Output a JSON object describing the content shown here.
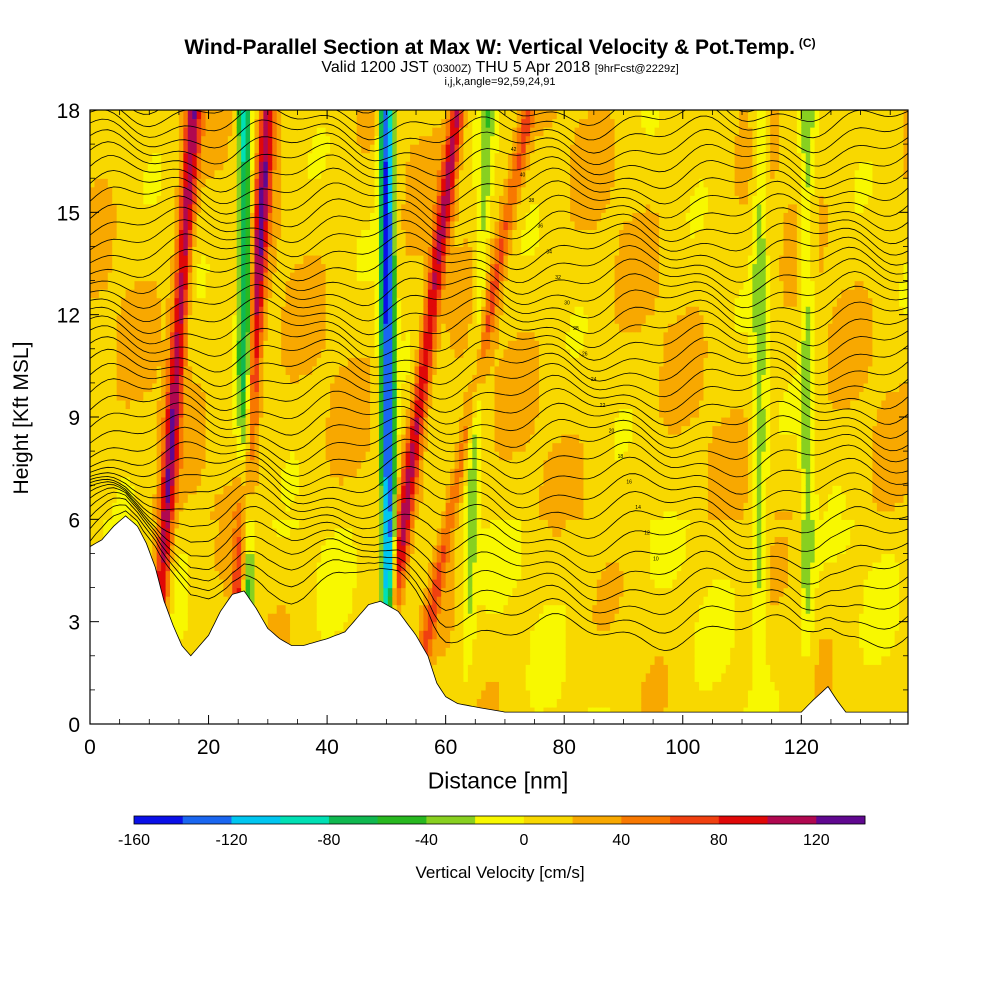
{
  "header": {
    "title": "Wind-Parallel Section at Max W: Vertical Velocity & Pot.Temp.",
    "copyright_mark": "(C)",
    "valid_text": "Valid 1200 JST",
    "utc_text": "(0300Z)",
    "date_text": "THU 5 Apr 2018",
    "forecast_text": "[9hrFcst@2229z]",
    "indices_text": "i,j,k,angle=92,59,24,91"
  },
  "chart_data": {
    "type": "heatmap",
    "title": "Wind-Parallel Section at Max W: Vertical Velocity & Pot.Temp.",
    "xlabel": "Distance [nm]",
    "ylabel": "Height [Kft MSL]",
    "xlim": [
      0,
      138
    ],
    "ylim": [
      0,
      18
    ],
    "x_ticks": [
      0,
      20,
      40,
      60,
      80,
      100,
      120
    ],
    "y_ticks": [
      0,
      3,
      6,
      9,
      12,
      15,
      18
    ],
    "colorbar": {
      "label": "Vertical Velocity [cm/s]",
      "range": [
        -160,
        140
      ],
      "tick_values": [
        -160,
        -120,
        -80,
        -40,
        0,
        40,
        80,
        120
      ],
      "tick_labels": [
        "-160",
        "-120",
        "-80",
        "-40",
        "0",
        "40",
        "80",
        "120"
      ],
      "colors": [
        "#0a10e8",
        "#1a66f0",
        "#00c6f0",
        "#00e0b4",
        "#10b850",
        "#28b820",
        "#88d020",
        "#f8f800",
        "#f8d800",
        "#f8a800",
        "#f87800",
        "#f04010",
        "#e00808",
        "#b00850",
        "#600890"
      ]
    },
    "terrain_top_kft": [
      [
        0,
        5.2
      ],
      [
        2,
        5.4
      ],
      [
        4,
        5.8
      ],
      [
        6,
        6.1
      ],
      [
        8,
        5.8
      ],
      [
        9.5,
        5.3
      ],
      [
        11,
        4.6
      ],
      [
        12.5,
        3.6
      ],
      [
        14,
        2.9
      ],
      [
        15.5,
        2.3
      ],
      [
        17,
        2.0
      ],
      [
        18.5,
        2.3
      ],
      [
        20,
        2.6
      ],
      [
        22,
        3.3
      ],
      [
        24,
        3.8
      ],
      [
        26,
        3.9
      ],
      [
        28,
        3.4
      ],
      [
        30,
        2.8
      ],
      [
        32,
        2.5
      ],
      [
        34,
        2.3
      ],
      [
        36,
        2.3
      ],
      [
        38,
        2.4
      ],
      [
        40,
        2.5
      ],
      [
        43,
        2.7
      ],
      [
        45,
        3.1
      ],
      [
        47,
        3.5
      ],
      [
        49,
        3.6
      ],
      [
        52,
        3.3
      ],
      [
        55,
        2.6
      ],
      [
        57,
        2.0
      ],
      [
        58.5,
        1.2
      ],
      [
        60,
        0.8
      ],
      [
        62,
        0.6
      ],
      [
        65,
        0.5
      ],
      [
        70,
        0.35
      ],
      [
        80,
        0.35
      ],
      [
        100,
        0.35
      ],
      [
        120,
        0.35
      ],
      [
        122,
        0.7
      ],
      [
        124.5,
        1.1
      ],
      [
        126,
        0.7
      ],
      [
        127.5,
        0.35
      ],
      [
        138,
        0.35
      ]
    ],
    "updraft_bands": [
      {
        "x_bottom": 10.5,
        "x_top": 17.5,
        "w_cm_s": 100
      },
      {
        "x_bottom": 24,
        "x_top": 30,
        "w_cm_s": 100
      },
      {
        "x_bottom": 48.5,
        "x_top": 62,
        "w_cm_s": 90
      },
      {
        "x_bottom": 54,
        "x_top": 74,
        "w_cm_s": 50
      }
    ],
    "downdraft_bands": [
      {
        "x_bottom": 26.5,
        "x_top": 26,
        "w_cm_s": -100
      },
      {
        "x_bottom": 50.5,
        "x_top": 50,
        "w_cm_s": -160
      },
      {
        "x_bottom": 63,
        "x_top": 67,
        "w_cm_s": -40
      },
      {
        "x_bottom": 113,
        "x_top": 113,
        "w_cm_s": -40
      },
      {
        "x_bottom": 121,
        "x_top": 121,
        "w_cm_s": -40
      }
    ],
    "isentrope_labels": [
      "10",
      "12",
      "14",
      "16",
      "18",
      "20",
      "22",
      "24",
      "26",
      "28",
      "30",
      "32",
      "34",
      "36",
      "38",
      "40",
      "42"
    ]
  }
}
